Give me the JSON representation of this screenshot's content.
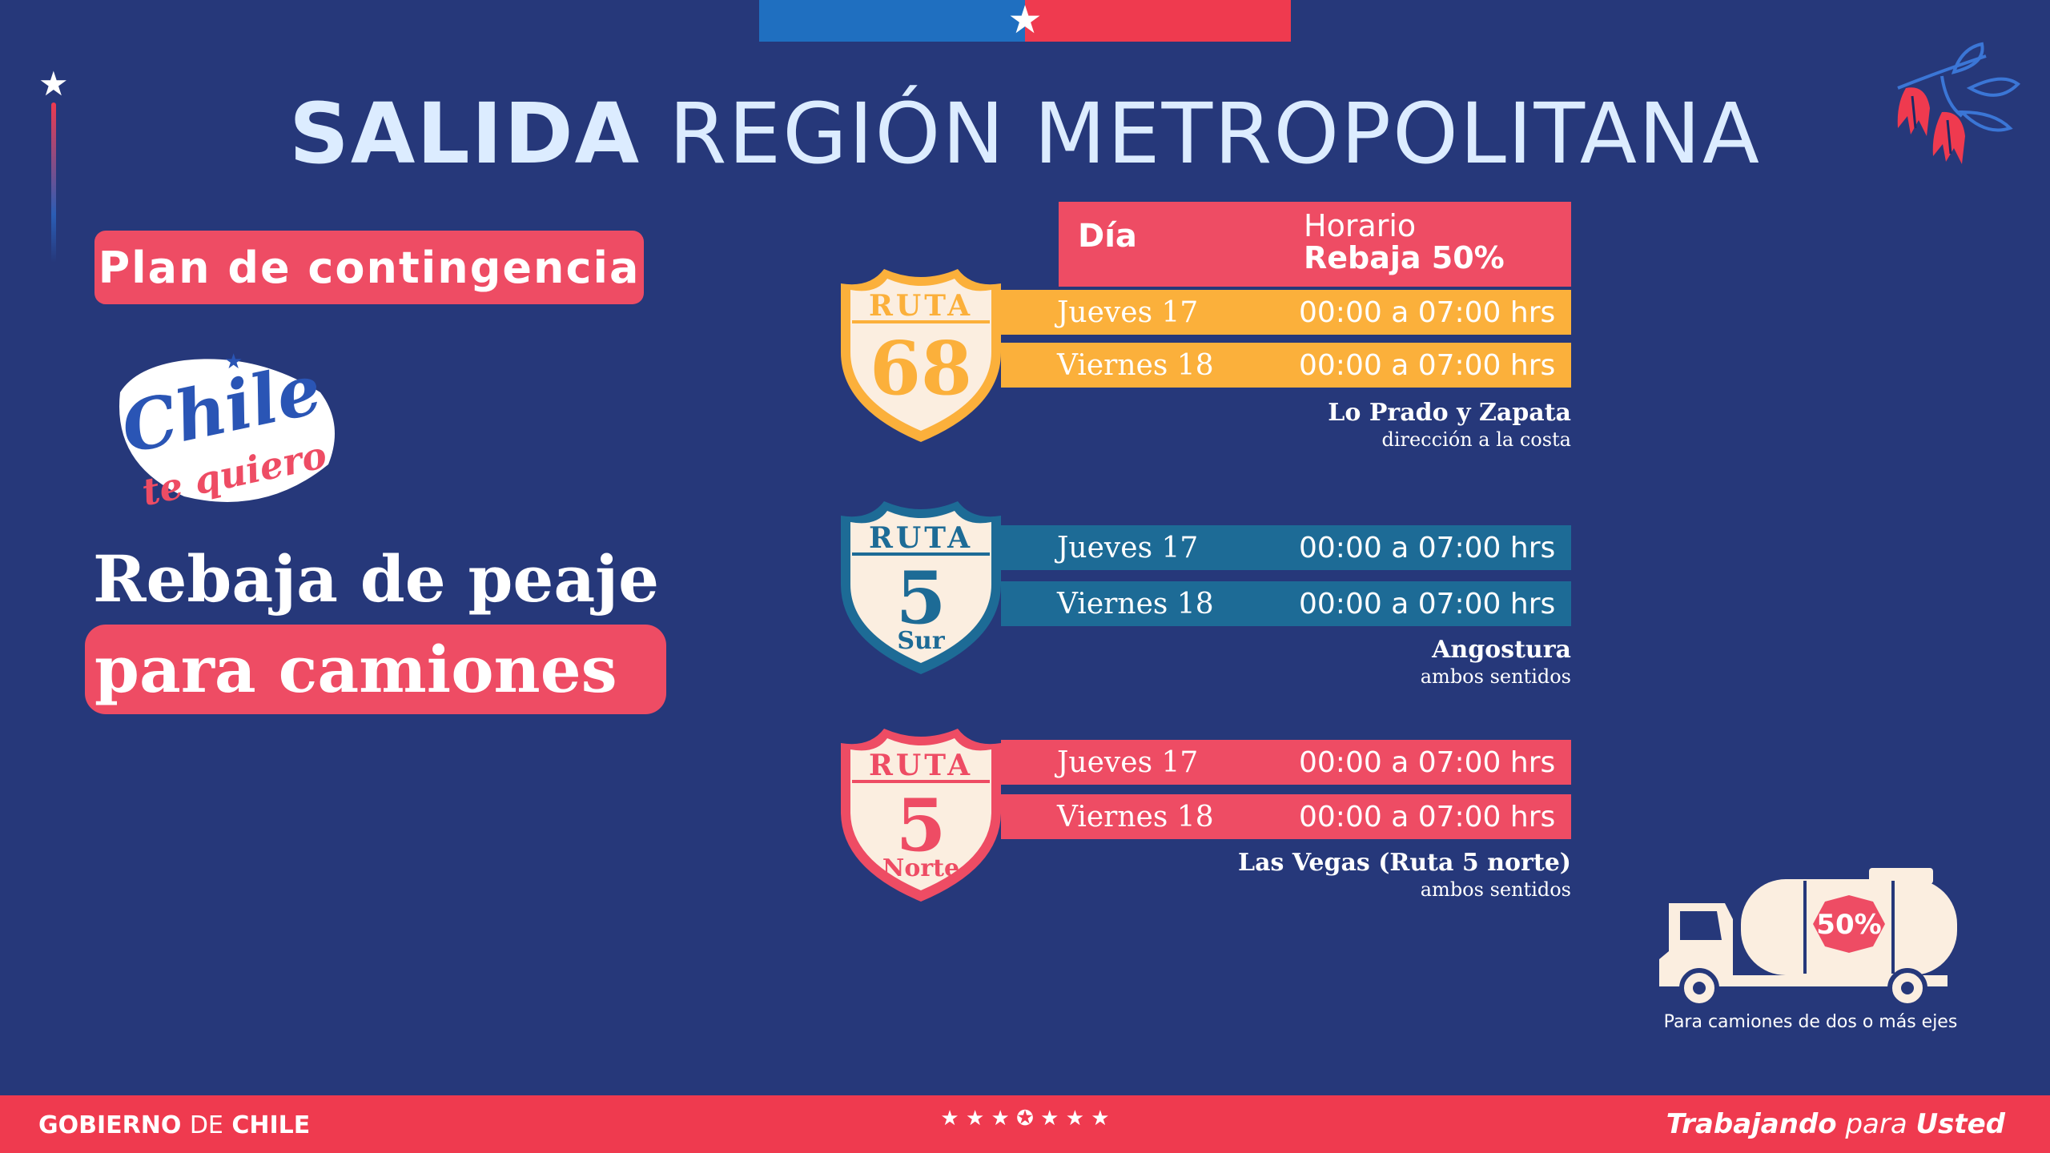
{
  "header": {
    "title_bold": "SALIDA",
    "title_rest": "REGIÓN METROPOLITANA"
  },
  "left": {
    "plan_label": "Plan de contingencia",
    "logo_text_1": "Chile",
    "logo_text_2": "te quiero",
    "headline_1": "Rebaja de peaje",
    "headline_2": "para camiones"
  },
  "table_header": {
    "col_day": "Día",
    "col_time_1": "Horario",
    "col_time_2": "Rebaja 50%"
  },
  "routes": [
    {
      "shield_top": "RUTA",
      "shield_number": "68",
      "shield_sub": "",
      "color": "#fbb03b",
      "rows": [
        {
          "day": "Jueves 17",
          "time": "00:00 a 07:00 hrs"
        },
        {
          "day": "Viernes 18",
          "time": "00:00 a 07:00 hrs"
        }
      ],
      "location": "Lo Prado y  Zapata",
      "direction": "dirección a la costa"
    },
    {
      "shield_top": "RUTA",
      "shield_number": "5",
      "shield_sub": "Sur",
      "color": "#1d6b96",
      "rows": [
        {
          "day": "Jueves 17",
          "time": "00:00 a 07:00 hrs"
        },
        {
          "day": "Viernes 18",
          "time": "00:00 a 07:00 hrs"
        }
      ],
      "location": "Angostura",
      "direction": "ambos sentidos"
    },
    {
      "shield_top": "RUTA",
      "shield_number": "5",
      "shield_sub": "Norte",
      "color": "#ee4c64",
      "rows": [
        {
          "day": "Jueves 17",
          "time": "00:00 a 07:00 hrs"
        },
        {
          "day": "Viernes 18",
          "time": "00:00 a 07:00 hrs"
        }
      ],
      "location": "Las Vegas (Ruta 5 norte)",
      "direction": "ambos sentidos"
    }
  ],
  "truck": {
    "badge": "50%",
    "caption": "Para camiones de dos o más ejes"
  },
  "footer": {
    "gob_1": "GOBIERNO",
    "gob_2": "DE",
    "gob_3": "CHILE",
    "stars": "★ ★ ★ ✪ ★ ★ ★",
    "slogan_1": "Trabajando",
    "slogan_2": "para",
    "slogan_3": "Usted"
  },
  "colors": {
    "background": "#26387a",
    "accent_red": "#ee4c64",
    "orange": "#fbb03b",
    "teal": "#1d6b96",
    "flag_blue": "#1f6fc0"
  }
}
